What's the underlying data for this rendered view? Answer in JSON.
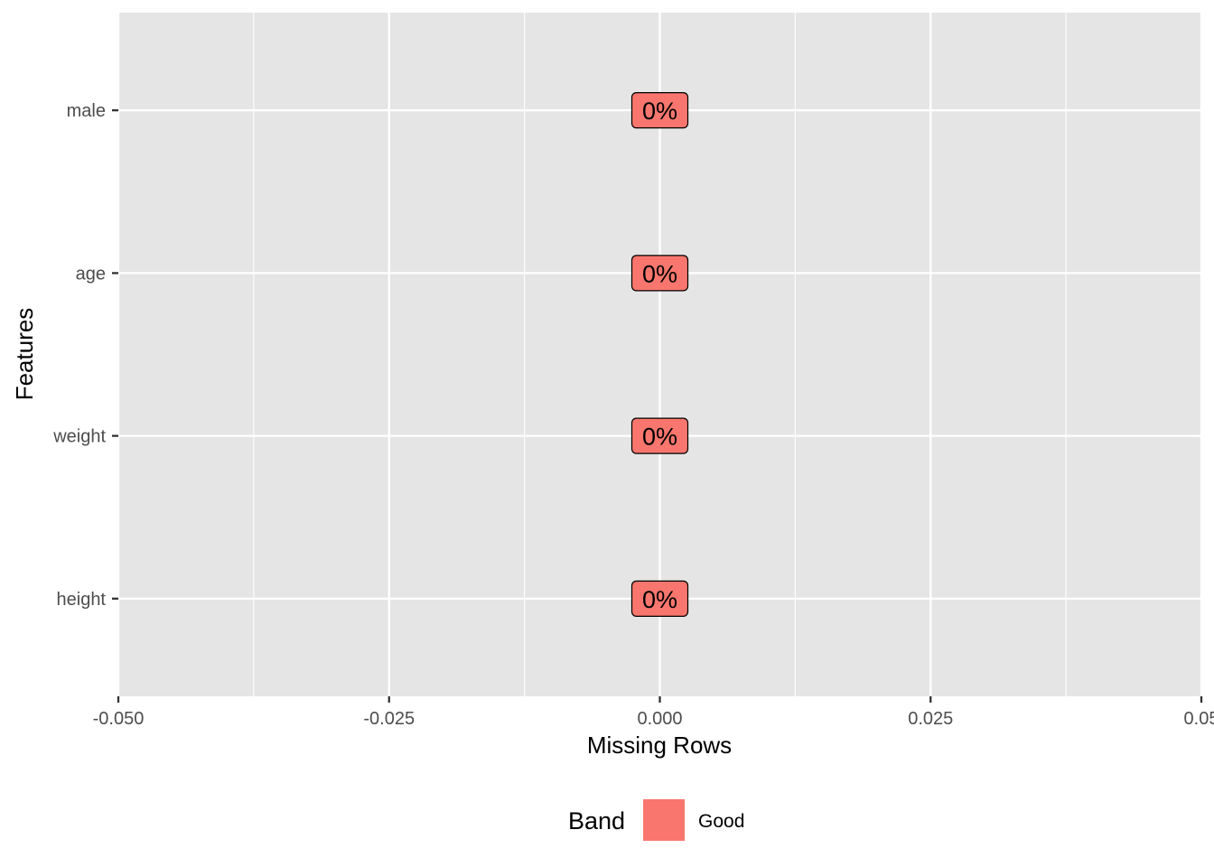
{
  "chart_data": {
    "type": "bar",
    "orientation": "horizontal",
    "categories": [
      "male",
      "age",
      "weight",
      "height"
    ],
    "values": [
      0,
      0,
      0,
      0
    ],
    "labels": [
      "0%",
      "0%",
      "0%",
      "0%"
    ],
    "bands": [
      "Good",
      "Good",
      "Good",
      "Good"
    ],
    "xlabel": "Missing Rows",
    "ylabel": "Features",
    "xlim": [
      -0.05,
      0.05
    ],
    "xticks": [
      -0.05,
      -0.025,
      0,
      0.025,
      0.05
    ],
    "xtick_labels": [
      "-0.050",
      "-0.025",
      "0.000",
      "0.025",
      "0.05"
    ],
    "grid": true,
    "legend": {
      "title": "Band",
      "position": "bottom",
      "entries": [
        {
          "name": "Good",
          "color": "#F8766D"
        }
      ]
    },
    "colors": {
      "panel": "#E5E5E5",
      "grid": "#FFFFFF",
      "fill": "#F8766D"
    }
  }
}
